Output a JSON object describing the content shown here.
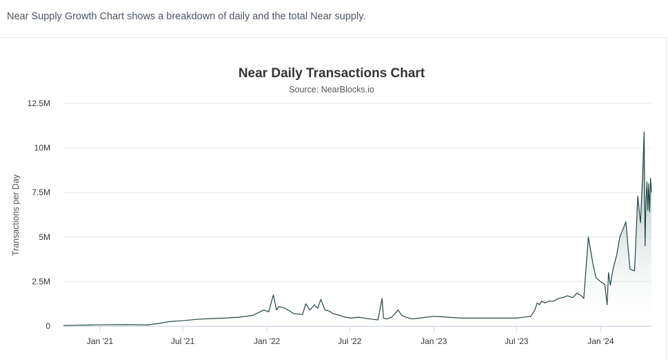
{
  "header": {
    "description": "Near Supply Growth Chart shows a breakdown of daily and the total Near supply."
  },
  "chart_data": {
    "type": "area",
    "title": "Near Daily Transactions Chart",
    "subtitle": "Source: NearBlocks.io",
    "ylabel": "Transactions per Day",
    "xlabel": "",
    "ylim": [
      0,
      12500000
    ],
    "yticks": [
      {
        "value": 0,
        "label": "0"
      },
      {
        "value": 2500000,
        "label": "2.5M"
      },
      {
        "value": 5000000,
        "label": "5M"
      },
      {
        "value": 7500000,
        "label": "7.5M"
      },
      {
        "value": 10000000,
        "label": "10M"
      },
      {
        "value": 12500000,
        "label": "12.5M"
      }
    ],
    "xrange": [
      "2020-10-13",
      "2024-04-21"
    ],
    "xticks": [
      {
        "date": "2021-01-01",
        "label": "Jan '21"
      },
      {
        "date": "2021-07-01",
        "label": "Jul '21"
      },
      {
        "date": "2022-01-01",
        "label": "Jan '22"
      },
      {
        "date": "2022-07-01",
        "label": "Jul '22"
      },
      {
        "date": "2023-01-01",
        "label": "Jan '23"
      },
      {
        "date": "2023-07-01",
        "label": "Jul '23"
      },
      {
        "date": "2024-01-01",
        "label": "Jan '24"
      }
    ],
    "grid": true,
    "legend": "none",
    "colors": {
      "line": "#1f4543",
      "fill_top": "#7d9795",
      "fill_bottom": "#ffffff",
      "grid": "#e6e6e6"
    },
    "series": [
      {
        "x": [
          "2020-10-13",
          "2020-11-15",
          "2021-01-01",
          "2021-03-01",
          "2021-04-15",
          "2021-05-10",
          "2021-06-01",
          "2021-07-01",
          "2021-08-01",
          "2021-09-01",
          "2021-10-01",
          "2021-11-01",
          "2021-12-01",
          "2021-12-25",
          "2022-01-05",
          "2022-01-15",
          "2022-01-22",
          "2022-01-27",
          "2022-02-10",
          "2022-03-01",
          "2022-03-20",
          "2022-03-27",
          "2022-04-05",
          "2022-04-15",
          "2022-04-22",
          "2022-04-29",
          "2022-05-08",
          "2022-05-16",
          "2022-05-20",
          "2022-05-25",
          "2022-06-10",
          "2022-06-20",
          "2022-07-05",
          "2022-07-20",
          "2022-08-15",
          "2022-09-01",
          "2022-09-10",
          "2022-09-13",
          "2022-09-20",
          "2022-10-01",
          "2022-10-15",
          "2022-10-23",
          "2022-11-01",
          "2022-11-15",
          "2022-12-01",
          "2023-01-01",
          "2023-02-01",
          "2023-03-01",
          "2023-04-01",
          "2023-05-01",
          "2023-06-01",
          "2023-07-01",
          "2023-08-01",
          "2023-08-10",
          "2023-08-15",
          "2023-08-20",
          "2023-08-25",
          "2023-09-01",
          "2023-09-10",
          "2023-09-20",
          "2023-10-01",
          "2023-10-10",
          "2023-10-20",
          "2023-11-01",
          "2023-11-10",
          "2023-11-20",
          "2023-11-25",
          "2023-12-05",
          "2023-12-15",
          "2023-12-22",
          "2024-01-03",
          "2024-01-10",
          "2024-01-15",
          "2024-01-18",
          "2024-01-22",
          "2024-01-28",
          "2024-02-05",
          "2024-02-12",
          "2024-02-25",
          "2024-03-05",
          "2024-03-15",
          "2024-03-22",
          "2024-03-28",
          "2024-04-02",
          "2024-04-05",
          "2024-04-07",
          "2024-04-09",
          "2024-04-11",
          "2024-04-13",
          "2024-04-15",
          "2024-04-17",
          "2024-04-19",
          "2024-04-21"
        ],
        "values": [
          30000,
          50000,
          70000,
          80000,
          60000,
          150000,
          250000,
          300000,
          380000,
          420000,
          450000,
          500000,
          600000,
          900000,
          800000,
          1750000,
          900000,
          1100000,
          1000000,
          700000,
          650000,
          1250000,
          900000,
          1200000,
          1000000,
          1500000,
          900000,
          850000,
          800000,
          700000,
          600000,
          500000,
          450000,
          500000,
          400000,
          350000,
          1550000,
          450000,
          400000,
          500000,
          900000,
          600000,
          500000,
          400000,
          450000,
          550000,
          500000,
          450000,
          450000,
          450000,
          450000,
          450000,
          550000,
          900000,
          1300000,
          1200000,
          1400000,
          1300000,
          1400000,
          1400000,
          1550000,
          1600000,
          1700000,
          1600000,
          1850000,
          1700000,
          1550000,
          5000000,
          3500000,
          2700000,
          2450000,
          2350000,
          1200000,
          3000000,
          2300000,
          3200000,
          4000000,
          5000000,
          5850000,
          3200000,
          3100000,
          7300000,
          5800000,
          8700000,
          10900000,
          4500000,
          7000000,
          8100000,
          6500000,
          8000000,
          6400000,
          8300000,
          7500000
        ]
      }
    ]
  }
}
